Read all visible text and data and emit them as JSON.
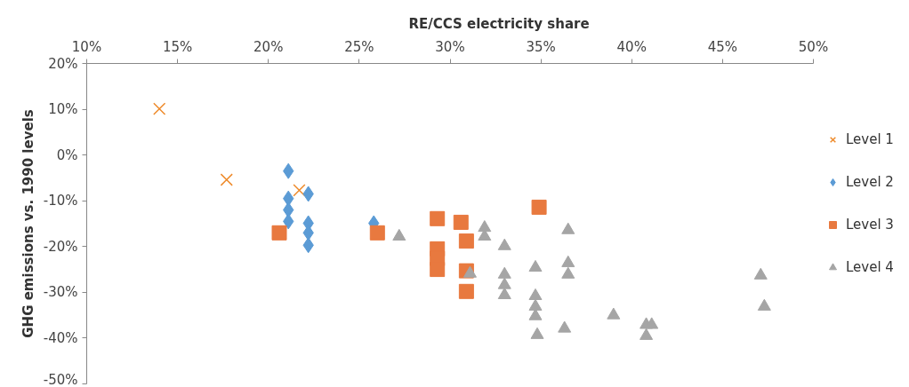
{
  "chart_data": {
    "type": "scatter",
    "xlabel": "RE/CCS electricity share",
    "ylabel": "GHG emissions vs. 1990 levels",
    "xlim": [
      10,
      50
    ],
    "ylim": [
      -50,
      20
    ],
    "xticks": [
      {
        "value": 10,
        "label": "10%"
      },
      {
        "value": 15,
        "label": "15%"
      },
      {
        "value": 20,
        "label": "20%"
      },
      {
        "value": 25,
        "label": "25%"
      },
      {
        "value": 30,
        "label": "30%"
      },
      {
        "value": 35,
        "label": "35%"
      },
      {
        "value": 40,
        "label": "40%"
      },
      {
        "value": 45,
        "label": "45%"
      },
      {
        "value": 50,
        "label": "50%"
      }
    ],
    "yticks": [
      {
        "value": 20,
        "label": "20%"
      },
      {
        "value": 10,
        "label": "10%"
      },
      {
        "value": 0,
        "label": "0%"
      },
      {
        "value": -10,
        "label": "-10%"
      },
      {
        "value": -20,
        "label": "-20%"
      },
      {
        "value": -30,
        "label": "-30%"
      },
      {
        "value": -40,
        "label": "-40%"
      },
      {
        "value": -50,
        "label": "-50%"
      }
    ],
    "grid": false,
    "legend": "right",
    "series": [
      {
        "name": "Level 1",
        "color": "#ee8a2a",
        "marker": "cross",
        "x": [
          14.0,
          17.7,
          21.7
        ],
        "values": [
          10.1,
          -5.4,
          -7.7
        ]
      },
      {
        "name": "Level 2",
        "color": "#5b9bd5",
        "marker": "diamond",
        "x": [
          21.1,
          21.1,
          21.1,
          21.1,
          22.2,
          22.2,
          22.2,
          22.2,
          25.8
        ],
        "values": [
          -3.5,
          -9.5,
          -12,
          -14.5,
          -8.5,
          -14.9,
          -17,
          -19.7,
          -14.9
        ]
      },
      {
        "name": "Level 3",
        "color": "#e8793f",
        "marker": "square",
        "x": [
          20.6,
          26.0,
          29.3,
          30.6,
          30.9,
          34.9,
          29.3,
          29.3,
          29.3,
          30.9,
          30.9
        ],
        "values": [
          -17,
          -17,
          -13.9,
          -14.7,
          -18.8,
          -11.4,
          -20.5,
          -22.6,
          -25,
          -25.3,
          -29.8
        ]
      },
      {
        "name": "Level 4",
        "color": "#a5a5a5",
        "marker": "triangle",
        "x": [
          27.2,
          31.9,
          31.9,
          33.0,
          31.1,
          33.0,
          33.0,
          33.0,
          34.7,
          34.7,
          34.7,
          34.7,
          34.8,
          36.5,
          36.5,
          36.5,
          36.3,
          39.0,
          40.8,
          41.1,
          40.8,
          47.1,
          47.3
        ],
        "values": [
          -17.8,
          -15.9,
          -17.8,
          -19.9,
          -25.9,
          -26.1,
          -28.4,
          -30.6,
          -24.6,
          -30.8,
          -33.1,
          -35.2,
          -39.3,
          -16.4,
          -23.6,
          -26.1,
          -37.9,
          -35.0,
          -37.1,
          -37.1,
          -39.5,
          -26.3,
          -33.1
        ]
      }
    ]
  }
}
